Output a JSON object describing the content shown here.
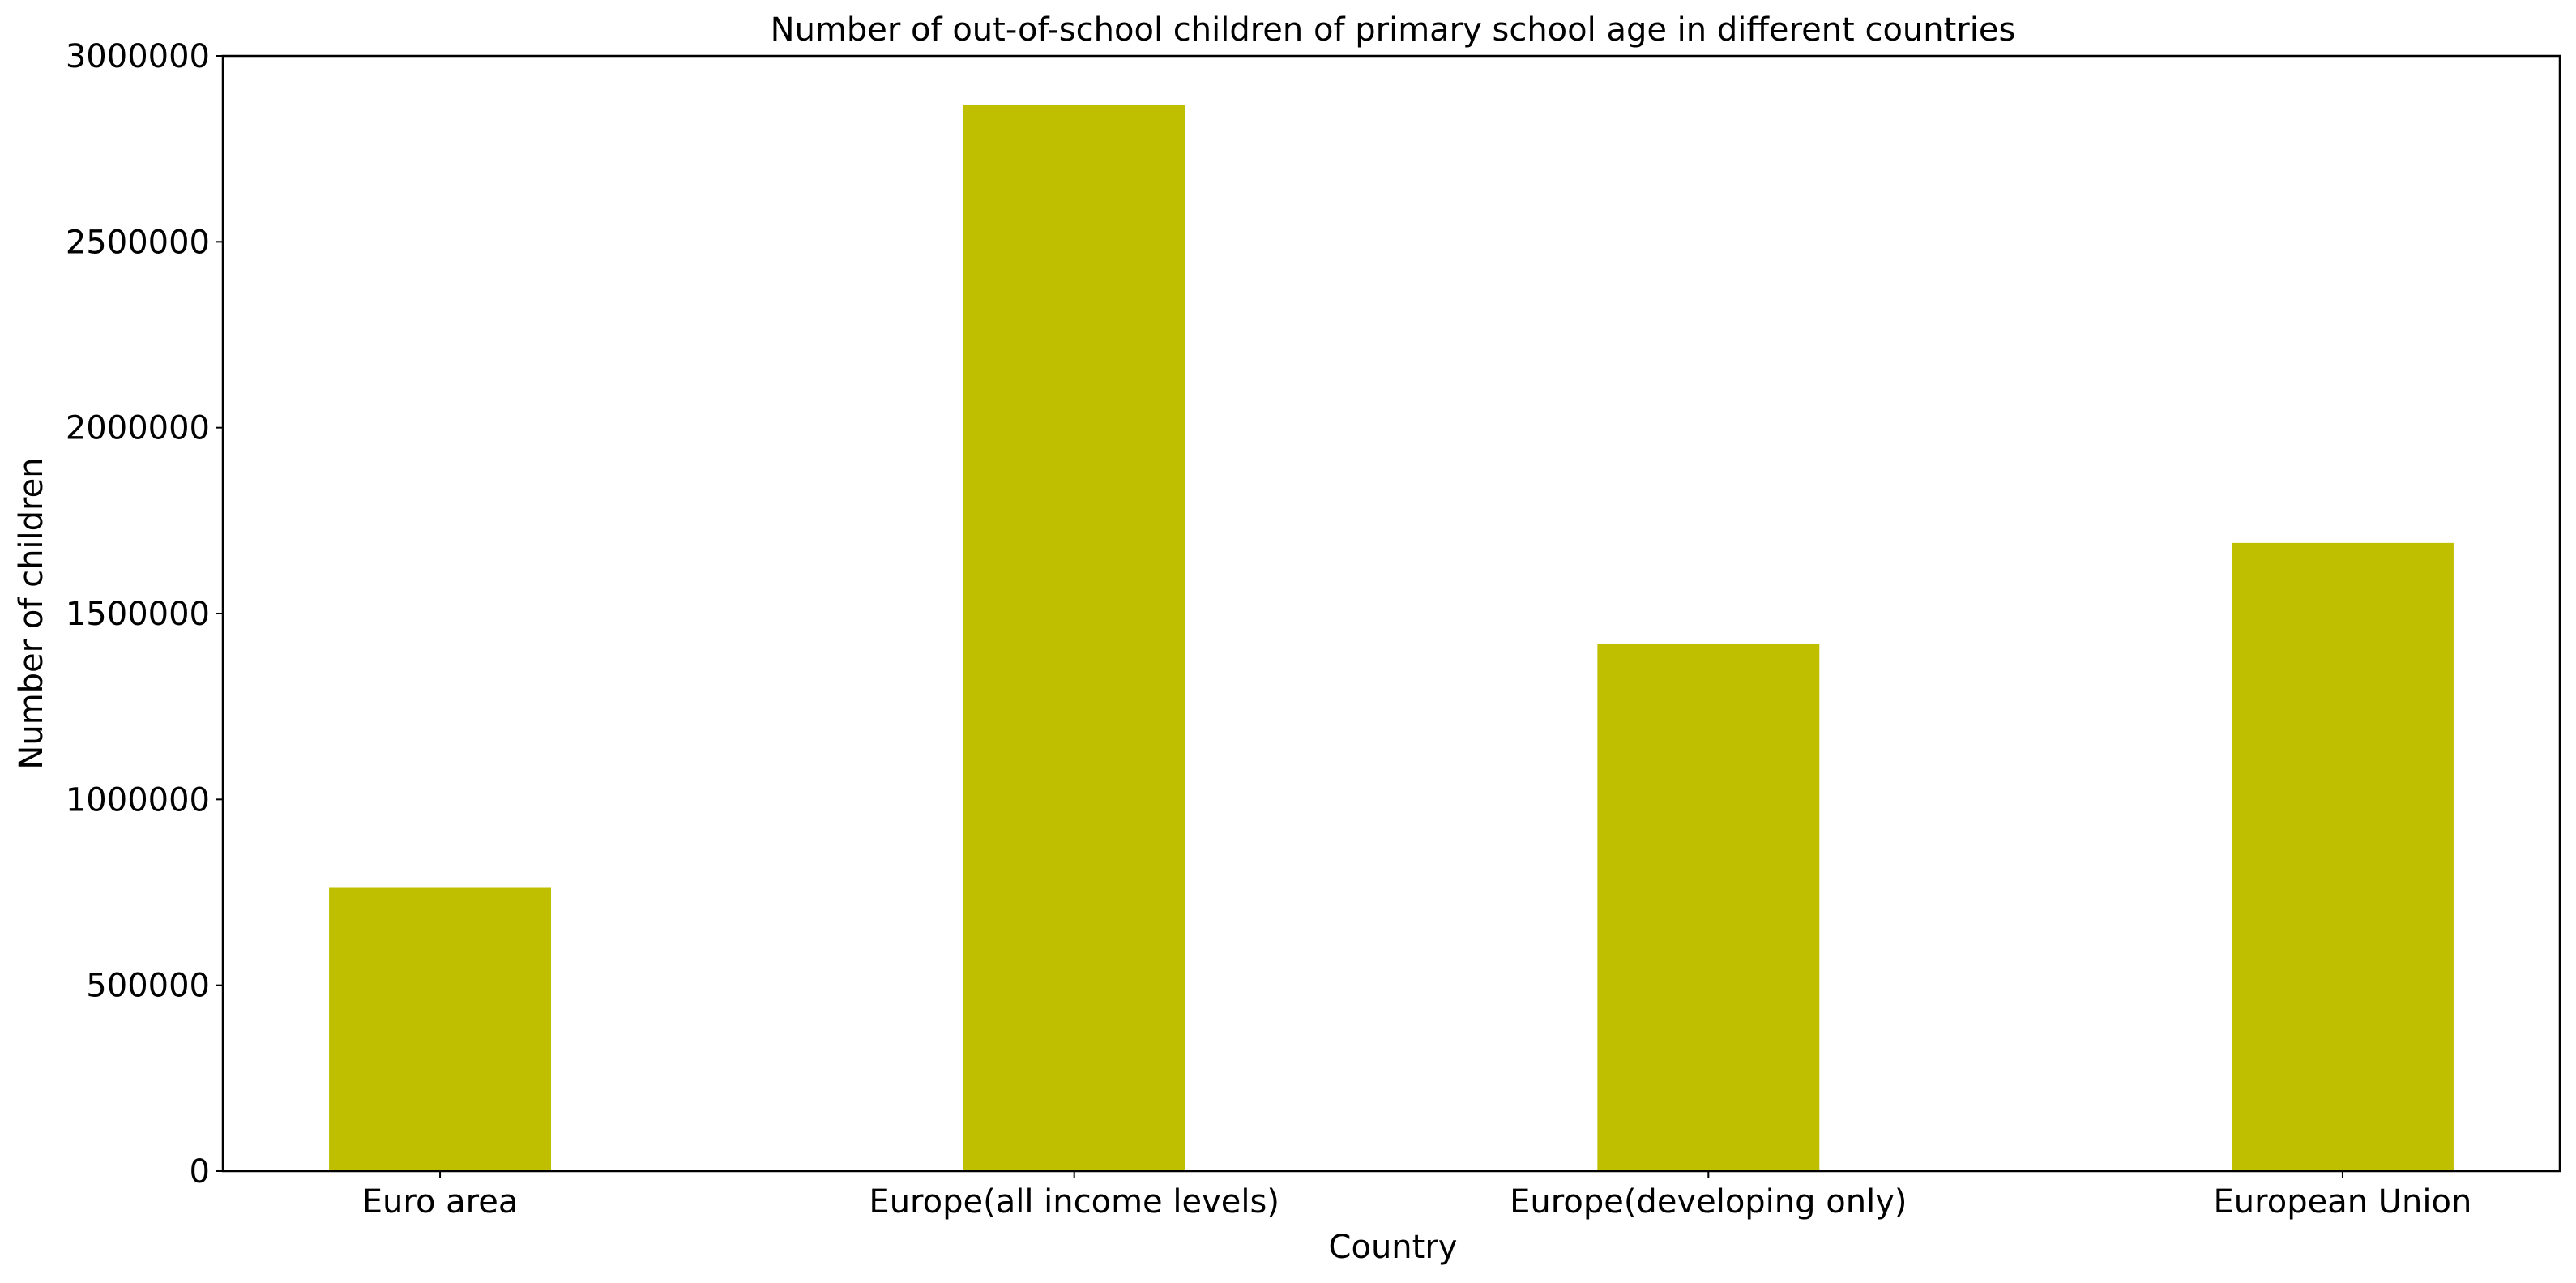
{
  "chart_data": {
    "type": "bar",
    "title": "Number of out-of-school children of primary school age in different countries",
    "xlabel": "Country",
    "ylabel": "Number of children",
    "categories": [
      "Euro area",
      "Europe(all income levels)",
      "Europe(developing only)",
      "European Union"
    ],
    "values": [
      762000,
      2867000,
      1418000,
      1690000
    ],
    "ylim": [
      0,
      3000000
    ],
    "yticks": [
      0,
      500000,
      1000000,
      1500000,
      2000000,
      2500000,
      3000000
    ],
    "ytick_labels": [
      "0",
      "500000",
      "1000000",
      "1500000",
      "2000000",
      "2500000",
      "3000000"
    ],
    "bar_color": "#bfbf00",
    "grid": false,
    "legend": false
  }
}
